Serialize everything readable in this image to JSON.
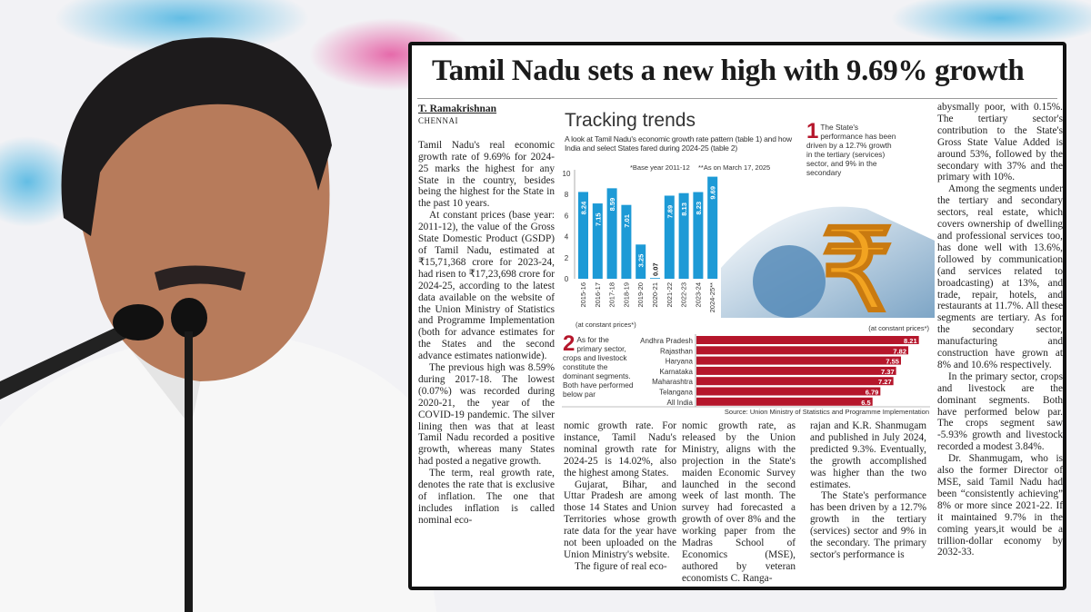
{
  "headline": "Tamil Nadu sets a new high with 9.69% growth",
  "byline": "T. Ramakrishnan",
  "dateline": "CHENNAI",
  "columns": [
    [
      "Tamil Nadu's real economic growth rate of 9.69% for 2024-25 marks the highest for any State in the country, besides being the highest for the State in the past 10 years.",
      "At constant prices (base year: 2011-12), the value of the Gross State Domestic Product (GSDP) of Tamil Nadu, estimated at ₹15,71,368 crore for 2023-24, had risen to ₹17,23,698 crore for 2024-25, according to the latest data available on the website of the Union Ministry of Statistics and Programme Implementation (both for advance estimates for the States and the second advance estimates nationwide).",
      "The previous high was 8.59% during 2017-18. The lowest (0.07%) was recorded during 2020-21, the year of the COVID-19 pandemic. The silver lining then was that at least Tamil Nadu recorded a positive growth, whereas many States had posted a negative growth.",
      "The term, real growth rate, denotes the rate that is exclusive of inflation. The one that includes inflation is called nominal eco-"
    ],
    [
      "nomic growth rate. For instance, Tamil Nadu's nominal growth rate for 2024-25 is 14.02%, also the highest among States.",
      "Gujarat, Bihar, and Uttar Pradesh are among those 14 States and Union Territories whose growth rate data for the year have not been uploaded on the Union Ministry's website.",
      "The figure of real eco-"
    ],
    [
      "nomic growth rate, as released by the Union Ministry, aligns with the projection in the State's maiden Economic Survey launched in the second week of last month. The survey had forecasted a growth of over 8% and the working paper from the Madras School of Economics (MSE), authored by veteran economists C. Ranga-"
    ],
    [
      "rajan and K.R. Shanmugam and published in July 2024, predicted 9.3%. Eventually, the growth accomplished was higher than the two estimates.",
      "The State's performance has been driven by a 12.7% growth in the tertiary (services) sector and 9% in the secondary. The primary sector's performance is"
    ],
    [
      "abysmally poor, with 0.15%. The tertiary sector's contribution to the State's Gross State Value Added is around 53%, followed by the secondary with 37% and the primary with 10%.",
      "Among the segments under the tertiary and secondary sectors, real estate, which covers ownership of dwelling and professional services too, has done well with 13.6%, followed by communication (and services related to broadcasting) at 13%, and trade, repair, hotels, and restaurants at 11.7%. All these segments are tertiary. As for the secondary sector, manufacturing and construction have grown at 8% and 10.6% respectively.",
      "In the primary sector, crops and livestock are the dominant segments. Both have performed below par. The crops segment saw -5.93% growth and livestock recorded a modest 3.84%.",
      "Dr. Shanmugam, who is also the former Director of MSE, said Tamil Nadu had been “consistently achieving” 8% or more since 2021-22. If it maintained 9.7% in the coming years,it would be a trillion-dollar economy by 2032-33."
    ]
  ],
  "infographic": {
    "title": "Tracking trends",
    "subtitle": "A look at Tamil Nadu's economic growth rate pattern (table 1) and how India and select States fared during 2024-25 (table 2)",
    "note_base": "*Base year 2011-12",
    "note_date": "**As on March 17, 2025",
    "callout1_num": "1",
    "callout1": "The State's performance has been driven by a 12.7% growth in the tertiary (services) sector, and 9% in the secondary",
    "callout2_num": "2",
    "callout2": "As for the primary sector, crops and livestock constitute the dominant segments. Both have performed below par",
    "source": "Source: Union Ministry of Statistics and Programme Implementation",
    "colors": {
      "bar1": "#1d9ad6",
      "bar2": "#b5162b",
      "rupee": "#f2a321"
    }
  },
  "chart_data": [
    {
      "type": "bar",
      "orientation": "vertical",
      "categories": [
        "2015-16",
        "2016-17",
        "2017-18",
        "2018-19",
        "2019-20",
        "2020-21",
        "2021-22",
        "2022-23",
        "2023-24",
        "2024-25**"
      ],
      "values": [
        8.24,
        7.15,
        8.59,
        7.01,
        3.25,
        0.07,
        7.89,
        8.13,
        8.23,
        9.69
      ],
      "yticks": [
        0,
        2,
        4,
        6,
        8,
        10
      ],
      "ylim": [
        0,
        10
      ],
      "xlabel": "(at constant prices*)",
      "grid": false
    },
    {
      "type": "bar",
      "orientation": "horizontal",
      "categories": [
        "Andhra Pradesh",
        "Rajasthan",
        "Haryana",
        "Karnataka",
        "Maharashtra",
        "Telangana",
        "All India"
      ],
      "values": [
        8.21,
        7.82,
        7.55,
        7.37,
        7.27,
        6.79,
        6.5
      ],
      "label": "(at constant prices*)"
    }
  ]
}
